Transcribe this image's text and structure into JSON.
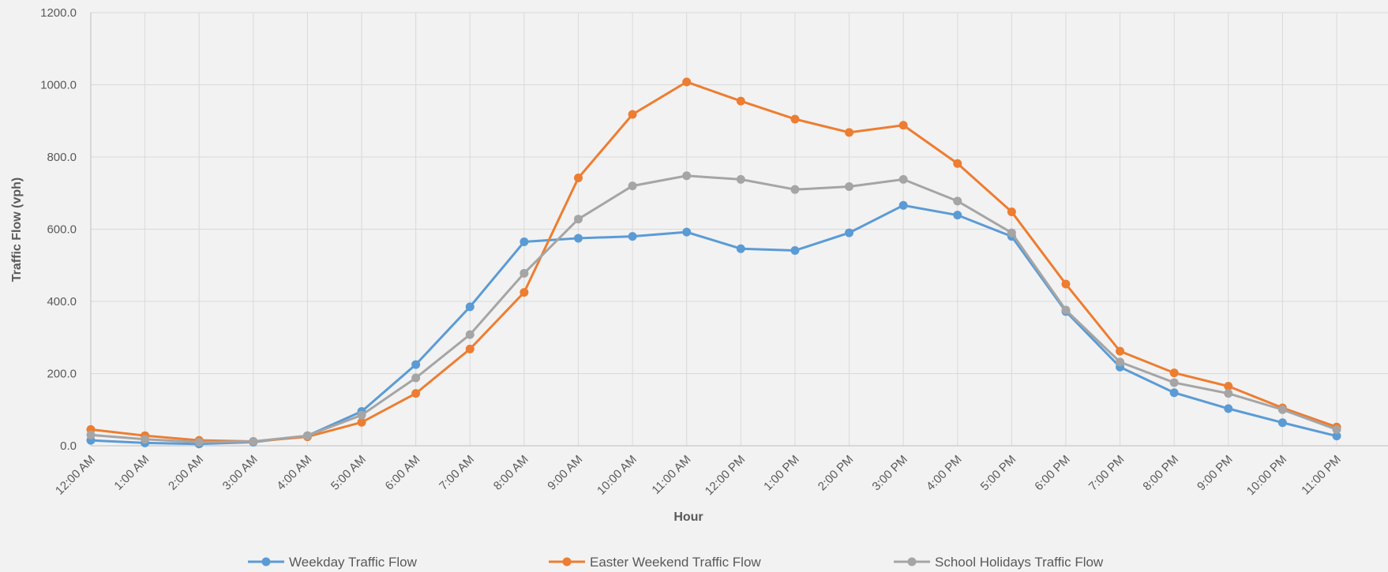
{
  "chart_data": {
    "type": "line",
    "x_label": "Hour",
    "y_label": "Traffic Flow (vph)",
    "categories": [
      "12:00 AM",
      "1:00 AM",
      "2:00 AM",
      "3:00 AM",
      "4:00 AM",
      "5:00 AM",
      "6:00 AM",
      "7:00 AM",
      "8:00 AM",
      "9:00 AM",
      "10:00 AM",
      "11:00 AM",
      "12:00 PM",
      "1:00 PM",
      "2:00 PM",
      "3:00 PM",
      "4:00 PM",
      "5:00 PM",
      "6:00 PM",
      "7:00 PM",
      "8:00 PM",
      "9:00 PM",
      "10:00 PM",
      "11:00 PM"
    ],
    "series": [
      {
        "name": "Weekday Traffic Flow",
        "color": "#5b9bd5",
        "values": [
          15,
          8,
          5,
          10,
          28,
          95,
          225,
          385,
          565,
          575,
          580,
          592,
          546,
          541,
          590,
          666,
          639,
          580,
          372,
          218,
          147,
          103,
          64,
          27
        ]
      },
      {
        "name": "Easter Weekend Traffic Flow",
        "color": "#ed7d31",
        "values": [
          45,
          28,
          15,
          12,
          25,
          65,
          145,
          268,
          425,
          742,
          918,
          1008,
          955,
          905,
          868,
          888,
          782,
          648,
          448,
          262,
          202,
          165,
          105,
          52
        ]
      },
      {
        "name": "School Holidays Traffic Flow",
        "color": "#a5a5a5",
        "values": [
          30,
          18,
          10,
          12,
          28,
          85,
          188,
          308,
          478,
          628,
          720,
          748,
          738,
          710,
          718,
          738,
          678,
          590,
          376,
          232,
          175,
          145,
          100,
          45
        ]
      }
    ],
    "ylim": [
      0,
      1200
    ],
    "yticks": [
      {
        "value": 0,
        "label": "0.0"
      },
      {
        "value": 200,
        "label": "200.0"
      },
      {
        "value": 400,
        "label": "400.0"
      },
      {
        "value": 600,
        "label": "600.0"
      },
      {
        "value": 800,
        "label": "800.0"
      },
      {
        "value": 1000,
        "label": "1000.0"
      },
      {
        "value": 1200,
        "label": "1200.0"
      }
    ],
    "grid": true,
    "legend": "bottom"
  }
}
